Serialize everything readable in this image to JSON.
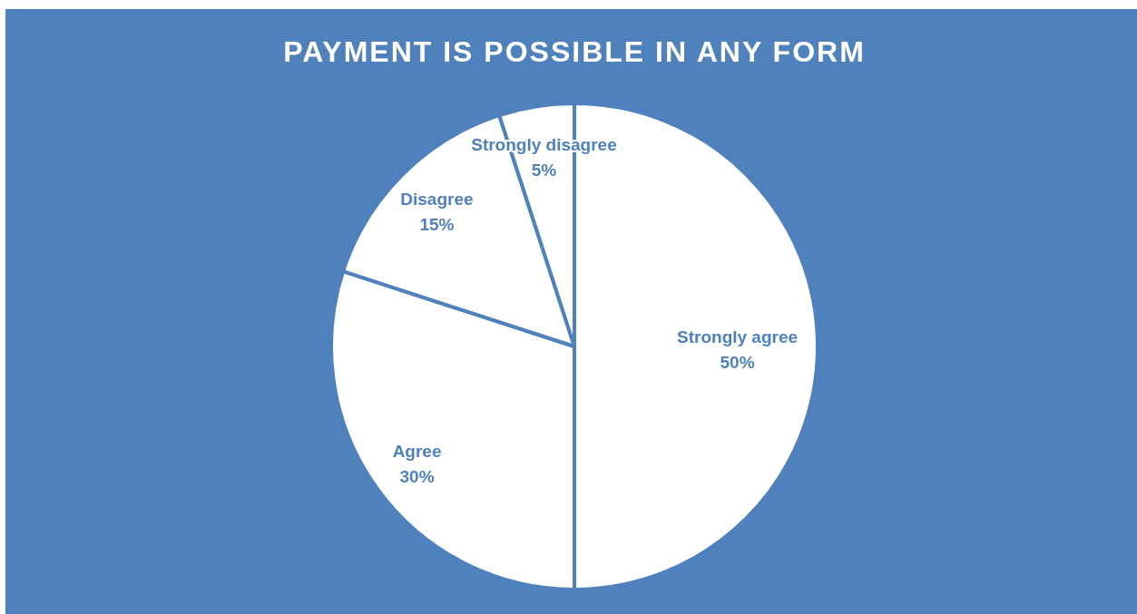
{
  "chart_data": {
    "type": "pie",
    "title": "PAYMENT IS POSSIBLE IN ANY FORM",
    "categories": [
      "Strongly agree",
      "Agree",
      "Disagree",
      "Strongly disagree"
    ],
    "values": [
      50,
      30,
      15,
      5
    ],
    "colors": [
      "#ffffff",
      "#ffffff",
      "#ffffff",
      "#ffffff"
    ],
    "value_labels": [
      "50%",
      "30%",
      "15%",
      "5%"
    ],
    "legend": false
  }
}
